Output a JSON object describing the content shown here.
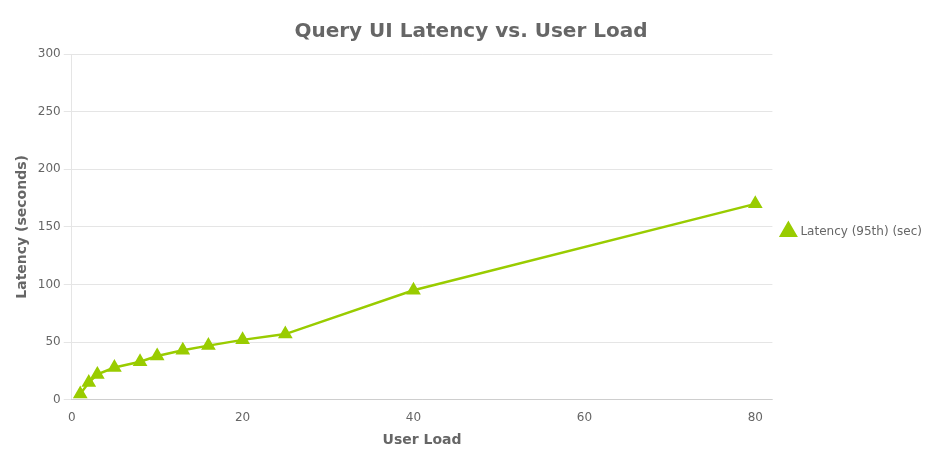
{
  "chart_data": {
    "type": "line",
    "title": "Query UI Latency vs. User Load",
    "xlabel": "User Load",
    "ylabel": "Latency (seconds)",
    "x": [
      1,
      2,
      3,
      5,
      8,
      10,
      13,
      16,
      20,
      25,
      40,
      80
    ],
    "series": [
      {
        "name": "Latency (95th) (sec)",
        "color": "#99cc00",
        "marker": "triangle",
        "values": [
          5,
          15,
          22,
          28,
          33,
          38,
          43,
          47,
          52,
          57,
          95,
          170
        ]
      }
    ],
    "xlim": [
      0,
      82
    ],
    "xticks": [
      0,
      20,
      40,
      60,
      80
    ],
    "ylim": [
      0,
      300
    ],
    "yticks": [
      0,
      50,
      100,
      150,
      200,
      250,
      300
    ],
    "grid": "y",
    "legend": "right"
  }
}
